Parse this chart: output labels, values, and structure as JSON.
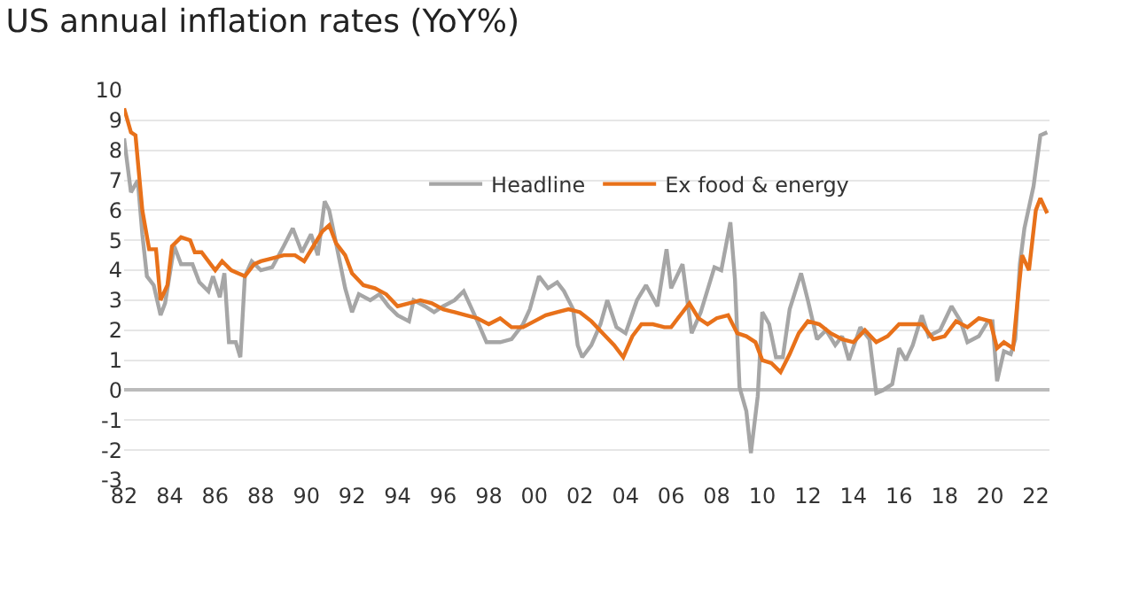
{
  "chart_data": {
    "type": "line",
    "title": "US annual inflation rates (YoY%)",
    "xlim": [
      1982,
      2022.6
    ],
    "xticks": [
      {
        "value": 1982,
        "label": "82"
      },
      {
        "value": 1984,
        "label": "84"
      },
      {
        "value": 1986,
        "label": "86"
      },
      {
        "value": 1988,
        "label": "88"
      },
      {
        "value": 1990,
        "label": "90"
      },
      {
        "value": 1992,
        "label": "92"
      },
      {
        "value": 1994,
        "label": "94"
      },
      {
        "value": 1996,
        "label": "96"
      },
      {
        "value": 1998,
        "label": "98"
      },
      {
        "value": 2000,
        "label": "00"
      },
      {
        "value": 2002,
        "label": "02"
      },
      {
        "value": 2004,
        "label": "04"
      },
      {
        "value": 2006,
        "label": "06"
      },
      {
        "value": 2008,
        "label": "08"
      },
      {
        "value": 2010,
        "label": "10"
      },
      {
        "value": 2012,
        "label": "12"
      },
      {
        "value": 2014,
        "label": "14"
      },
      {
        "value": 2016,
        "label": "16"
      },
      {
        "value": 2018,
        "label": "18"
      },
      {
        "value": 2020,
        "label": "20"
      },
      {
        "value": 2022,
        "label": "22"
      }
    ],
    "ylim": [
      -3,
      10
    ],
    "yticks": [
      -3,
      -2,
      -1,
      0,
      1,
      2,
      3,
      4,
      5,
      6,
      7,
      8,
      9,
      10
    ],
    "grid": "y",
    "legend": "top",
    "marker": "none",
    "line_style": "solid",
    "series": [
      {
        "name": "Headline",
        "color": "#a6a6a6",
        "x": [
          1982.0,
          1982.3,
          1982.6,
          1982.8,
          1983.0,
          1983.3,
          1983.6,
          1983.8,
          1984.2,
          1984.5,
          1985.0,
          1985.3,
          1985.7,
          1985.9,
          1986.2,
          1986.4,
          1986.6,
          1986.9,
          1987.1,
          1987.3,
          1987.6,
          1988.0,
          1988.5,
          1989.0,
          1989.4,
          1989.8,
          1990.2,
          1990.5,
          1990.8,
          1991.0,
          1991.3,
          1991.7,
          1992.0,
          1992.3,
          1992.8,
          1993.2,
          1993.6,
          1994.0,
          1994.5,
          1994.7,
          1995.2,
          1995.6,
          1996.0,
          1996.5,
          1996.9,
          1997.5,
          1997.9,
          1998.5,
          1999.0,
          1999.5,
          1999.8,
          2000.2,
          2000.6,
          2001.0,
          2001.3,
          2001.7,
          2001.9,
          2002.1,
          2002.5,
          2002.9,
          2003.2,
          2003.6,
          2004.0,
          2004.5,
          2004.9,
          2005.4,
          2005.8,
          2006.0,
          2006.5,
          2006.9,
          2007.3,
          2007.9,
          2008.2,
          2008.6,
          2008.8,
          2009.0,
          2009.3,
          2009.5,
          2009.8,
          2010.0,
          2010.3,
          2010.6,
          2010.9,
          2011.2,
          2011.7,
          2012.0,
          2012.4,
          2012.8,
          2013.2,
          2013.5,
          2013.8,
          2014.3,
          2014.7,
          2015.0,
          2015.3,
          2015.7,
          2016.0,
          2016.3,
          2016.6,
          2017.0,
          2017.3,
          2017.8,
          2018.3,
          2018.7,
          2019.0,
          2019.5,
          2019.9,
          2020.1,
          2020.3,
          2020.6,
          2020.9,
          2021.1,
          2021.3,
          2021.5,
          2021.9,
          2022.2,
          2022.5
        ],
        "values": [
          8.4,
          6.6,
          7.0,
          5.2,
          3.8,
          3.5,
          2.5,
          2.9,
          4.8,
          4.2,
          4.2,
          3.6,
          3.3,
          3.8,
          3.1,
          3.9,
          1.6,
          1.6,
          1.1,
          3.8,
          4.3,
          4.0,
          4.1,
          4.8,
          5.4,
          4.6,
          5.2,
          4.5,
          6.3,
          6.0,
          4.9,
          3.4,
          2.6,
          3.2,
          3.0,
          3.2,
          2.8,
          2.5,
          2.3,
          3.0,
          2.8,
          2.6,
          2.8,
          3.0,
          3.3,
          2.3,
          1.6,
          1.6,
          1.7,
          2.2,
          2.7,
          3.8,
          3.4,
          3.6,
          3.3,
          2.7,
          1.5,
          1.1,
          1.5,
          2.2,
          3.0,
          2.1,
          1.9,
          3.0,
          3.5,
          2.8,
          4.7,
          3.4,
          4.2,
          1.9,
          2.6,
          4.1,
          4.0,
          5.6,
          3.7,
          0.1,
          -0.7,
          -2.1,
          -0.2,
          2.6,
          2.2,
          1.1,
          1.1,
          2.7,
          3.9,
          3.0,
          1.7,
          2.0,
          1.5,
          1.8,
          1.0,
          2.1,
          1.7,
          -0.1,
          0.0,
          0.2,
          1.4,
          1.0,
          1.5,
          2.5,
          1.8,
          2.0,
          2.8,
          2.3,
          1.6,
          1.8,
          2.3,
          2.3,
          0.3,
          1.3,
          1.2,
          1.7,
          4.2,
          5.4,
          6.8,
          8.5,
          8.6
        ]
      },
      {
        "name": "Ex food & energy",
        "color": "#e8711a",
        "x": [
          1982.0,
          1982.3,
          1982.5,
          1982.8,
          1983.1,
          1983.4,
          1983.6,
          1983.9,
          1984.1,
          1984.5,
          1984.9,
          1985.1,
          1985.4,
          1985.8,
          1986.0,
          1986.3,
          1986.7,
          1987.0,
          1987.3,
          1987.7,
          1988.0,
          1988.5,
          1989.0,
          1989.5,
          1989.9,
          1990.3,
          1990.7,
          1991.0,
          1991.3,
          1991.7,
          1992.0,
          1992.5,
          1993.0,
          1993.5,
          1994.0,
          1994.5,
          1995.0,
          1995.5,
          1996.0,
          1996.5,
          1997.0,
          1997.5,
          1998.0,
          1998.5,
          1999.0,
          1999.5,
          2000.0,
          2000.5,
          2001.0,
          2001.5,
          2002.0,
          2002.5,
          2003.0,
          2003.5,
          2003.9,
          2004.3,
          2004.7,
          2005.2,
          2005.7,
          2006.0,
          2006.5,
          2006.8,
          2007.2,
          2007.6,
          2008.0,
          2008.5,
          2008.9,
          2009.3,
          2009.7,
          2010.0,
          2010.4,
          2010.8,
          2011.2,
          2011.6,
          2012.0,
          2012.5,
          2013.0,
          2013.5,
          2014.0,
          2014.5,
          2015.0,
          2015.5,
          2016.0,
          2016.5,
          2017.0,
          2017.5,
          2018.0,
          2018.5,
          2019.0,
          2019.5,
          2020.0,
          2020.3,
          2020.6,
          2021.0,
          2021.2,
          2021.4,
          2021.7,
          2022.0,
          2022.2,
          2022.5
        ],
        "values": [
          9.4,
          8.6,
          8.5,
          6.0,
          4.7,
          4.7,
          3.0,
          3.5,
          4.8,
          5.1,
          5.0,
          4.6,
          4.6,
          4.2,
          4.0,
          4.3,
          4.0,
          3.9,
          3.8,
          4.2,
          4.3,
          4.4,
          4.5,
          4.5,
          4.3,
          4.8,
          5.3,
          5.5,
          4.9,
          4.5,
          3.9,
          3.5,
          3.4,
          3.2,
          2.8,
          2.9,
          3.0,
          2.9,
          2.7,
          2.6,
          2.5,
          2.4,
          2.2,
          2.4,
          2.1,
          2.1,
          2.3,
          2.5,
          2.6,
          2.7,
          2.6,
          2.3,
          1.9,
          1.5,
          1.1,
          1.8,
          2.2,
          2.2,
          2.1,
          2.1,
          2.6,
          2.9,
          2.4,
          2.2,
          2.4,
          2.5,
          1.9,
          1.8,
          1.6,
          1.0,
          0.9,
          0.6,
          1.2,
          1.9,
          2.3,
          2.2,
          1.9,
          1.7,
          1.6,
          2.0,
          1.6,
          1.8,
          2.2,
          2.2,
          2.2,
          1.7,
          1.8,
          2.3,
          2.1,
          2.4,
          2.3,
          1.4,
          1.6,
          1.4,
          3.0,
          4.5,
          4.0,
          6.0,
          6.4,
          5.9
        ]
      }
    ]
  }
}
